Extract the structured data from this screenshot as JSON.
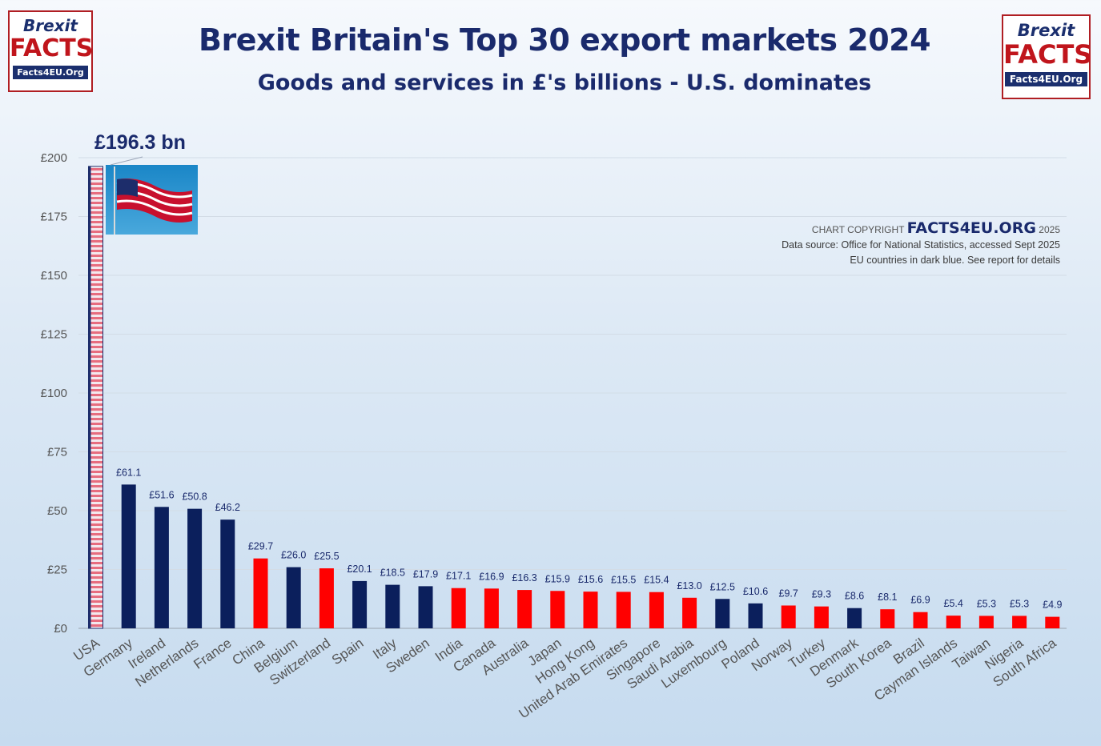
{
  "header": {
    "title": "Brexit Britain's Top 30 export markets 2024",
    "subtitle": "Goods and services in £'s billions - U.S. dominates"
  },
  "logo": {
    "line1": "Brexit",
    "line2": "FACTS",
    "line3": "Facts4EU.Org"
  },
  "credits": {
    "copyright_prefix": "CHART COPYRIGHT",
    "copyright_brand": "FACTS4EU.ORG",
    "copyright_year": "2025",
    "source": "Data source: Office for National Statistics, accessed Sept 2025",
    "note": "EU countries in dark blue. See report for details"
  },
  "highlight_label": "£196.3 bn",
  "colors": {
    "eu": "#0b1f5c",
    "non_eu": "#ff0000",
    "usa_stripe_red": "#e76d7f",
    "usa_stripe_white": "#f4e8ee",
    "usa_field": "#1d2d6b"
  },
  "chart_data": {
    "type": "bar",
    "title": "Brexit Britain's Top 30 export markets 2024",
    "subtitle": "Goods and services in £'s billions - U.S. dominates",
    "xlabel": "",
    "ylabel": "",
    "ylim": [
      0,
      200
    ],
    "yticks": [
      0,
      25,
      50,
      75,
      100,
      125,
      150,
      175,
      200
    ],
    "ytick_labels": [
      "£0",
      "£25",
      "£50",
      "£75",
      "£100",
      "£125",
      "£150",
      "£175",
      "£200"
    ],
    "grid": true,
    "categories": [
      "USA",
      "Germany",
      "Ireland",
      "Netherlands",
      "France",
      "China",
      "Belgium",
      "Switzerland",
      "Spain",
      "Italy",
      "Sweden",
      "India",
      "Canada",
      "Australia",
      "Japan",
      "Hong Kong",
      "United Arab Emirates",
      "Singapore",
      "Saudi Arabia",
      "Luxembourg",
      "Poland",
      "Norway",
      "Turkey",
      "Denmark",
      "South Korea",
      "Brazil",
      "Cayman Islands",
      "Taiwan",
      "Nigeria",
      "South Africa"
    ],
    "values": [
      196.3,
      61.1,
      51.6,
      50.8,
      46.2,
      29.7,
      26.0,
      25.5,
      20.1,
      18.5,
      17.9,
      17.1,
      16.9,
      16.3,
      15.9,
      15.6,
      15.5,
      15.4,
      13.0,
      12.5,
      10.6,
      9.7,
      9.3,
      8.6,
      8.1,
      6.9,
      5.4,
      5.3,
      5.3,
      4.9
    ],
    "value_labels": [
      "£196.3 bn",
      "£61.1",
      "£51.6",
      "£50.8",
      "£46.2",
      "£29.7",
      "£26.0",
      "£25.5",
      "£20.1",
      "£18.5",
      "£17.9",
      "£17.1",
      "£16.9",
      "£16.3",
      "£15.9",
      "£15.6",
      "£15.5",
      "£15.4",
      "£13.0",
      "£12.5",
      "£10.6",
      "£9.7",
      "£9.3",
      "£8.6",
      "£8.1",
      "£6.9",
      "£5.4",
      "£5.3",
      "£5.3",
      "£4.9"
    ],
    "eu_member": [
      false,
      true,
      true,
      true,
      true,
      false,
      true,
      false,
      true,
      true,
      true,
      false,
      false,
      false,
      false,
      false,
      false,
      false,
      false,
      true,
      true,
      false,
      false,
      true,
      false,
      false,
      false,
      false,
      false,
      false
    ]
  }
}
